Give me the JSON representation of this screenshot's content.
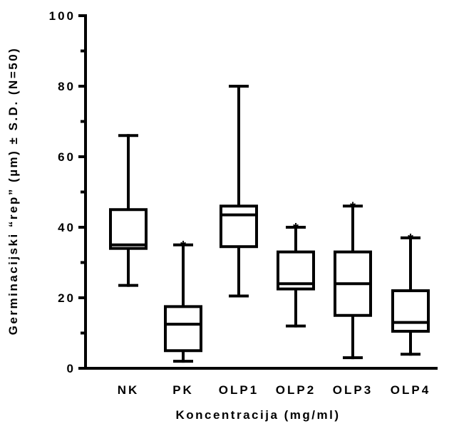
{
  "chart_data": {
    "type": "box",
    "xlabel": "Koncentracija (mg/ml)",
    "ylabel": "Germinacijski “rep” (µm) ± S.D. (N=50)",
    "ylim": [
      0,
      100
    ],
    "yticks": [
      "0",
      "20",
      "40",
      "60",
      "80",
      "100"
    ],
    "grid": false,
    "categories": [
      "NK",
      "PK",
      "OLP1",
      "OLP2",
      "OLP3",
      "OLP4"
    ],
    "boxes": [
      {
        "category": "NK",
        "min": 23.5,
        "q1": 34,
        "median": 35,
        "q3": 45,
        "max": 66,
        "significant": false
      },
      {
        "category": "PK",
        "min": 2,
        "q1": 5,
        "median": 12.5,
        "q3": 17.5,
        "max": 35,
        "significant": true
      },
      {
        "category": "OLP1",
        "min": 20.5,
        "q1": 34.5,
        "median": 43.5,
        "q3": 46,
        "max": 80,
        "significant": false
      },
      {
        "category": "OLP2",
        "min": 12,
        "q1": 22.5,
        "median": 24,
        "q3": 33,
        "max": 40,
        "significant": true
      },
      {
        "category": "OLP3",
        "min": 3,
        "q1": 15,
        "median": 24,
        "q3": 33,
        "max": 46,
        "significant": true
      },
      {
        "category": "OLP4",
        "min": 4,
        "q1": 10.5,
        "median": 13,
        "q3": 22,
        "max": 37,
        "significant": true
      }
    ],
    "significance_marker": "*"
  }
}
